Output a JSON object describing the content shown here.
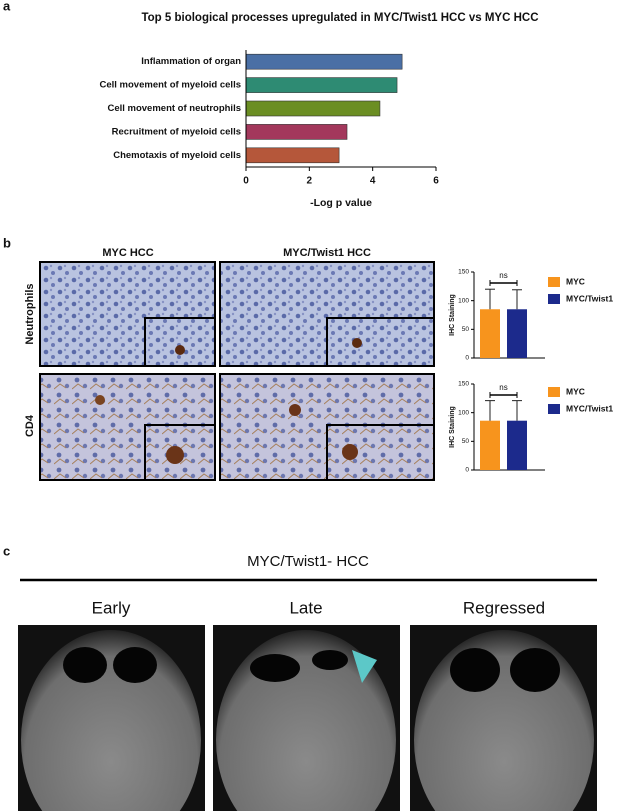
{
  "labels": {
    "panel_a": "a",
    "panel_b": "b",
    "panel_c": "c"
  },
  "histology": {
    "columns": [
      "MYC HCC",
      "MYC/Twist1 HCC"
    ],
    "rows": [
      "Neutrophils",
      "CD4"
    ]
  },
  "ct": {
    "title": "MYC/Twist1- HCC",
    "columns": [
      "Early",
      "Late",
      "Regressed"
    ]
  },
  "chart_data": [
    {
      "type": "bar",
      "orientation": "horizontal",
      "title": "Top 5 biological processes upregulated in MYC/Twist1 HCC vs MYC HCC",
      "categories": [
        "Inflammation of organ",
        "Cell movement of myeloid cells",
        "Cell movement of neutrophils",
        "Recruitment of myeloid cells",
        "Chemotaxis of myeloid cells"
      ],
      "values": [
        4.93,
        4.77,
        4.23,
        3.19,
        2.94
      ],
      "colors": [
        "#4a6fa5",
        "#2e8b73",
        "#6b8e23",
        "#a3385c",
        "#b5573a"
      ],
      "xlim": [
        0,
        6
      ],
      "xticks": [
        0,
        2,
        4,
        6
      ],
      "xlabel": "-Log p value"
    },
    {
      "type": "errorbar",
      "ylabel": "IHC Staining",
      "ylim": [
        0,
        150
      ],
      "yticks": [
        0,
        50,
        100,
        150
      ],
      "annotation": "ns",
      "legend": "right",
      "series": [
        {
          "name": "MYC",
          "color": "#f7941d",
          "values": [
            85
          ],
          "errors": [
            35
          ]
        },
        {
          "name": "MYC/Twist1",
          "color": "#1c2a8c",
          "values": [
            85
          ],
          "errors": [
            34
          ]
        }
      ]
    },
    {
      "type": "errorbar",
      "ylabel": "IHC Staining",
      "ylim": [
        0,
        150
      ],
      "yticks": [
        0,
        50,
        100,
        150
      ],
      "annotation": "ns",
      "legend": "right",
      "series": [
        {
          "name": "MYC",
          "color": "#f7941d",
          "values": [
            86
          ],
          "errors": [
            35
          ]
        },
        {
          "name": "MYC/Twist1",
          "color": "#1c2a8c",
          "values": [
            86
          ],
          "errors": [
            35
          ]
        }
      ]
    }
  ]
}
